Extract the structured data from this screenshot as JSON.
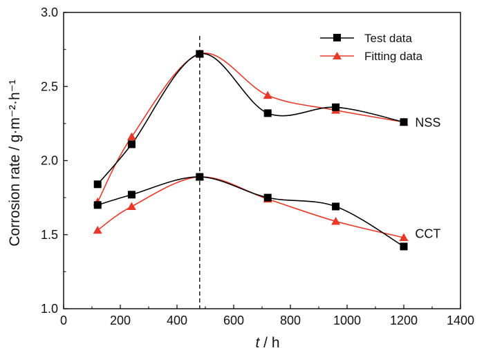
{
  "chart_data": {
    "type": "line",
    "title": "",
    "xlabel_italic": "t",
    "xlabel_rest": " / h",
    "ylabel": "Corrosion rate / g·m⁻²·h⁻¹",
    "xlim": [
      0,
      1400
    ],
    "ylim": [
      1.0,
      3.0
    ],
    "xticks": [
      0,
      200,
      400,
      600,
      800,
      1000,
      1200,
      1400
    ],
    "yticks": [
      1.0,
      1.5,
      2.0,
      2.5,
      3.0
    ],
    "xtick_labels": [
      "0",
      "200",
      "400",
      "600",
      "800",
      "1000",
      "1200",
      "1400"
    ],
    "ytick_labels": [
      "1.0",
      "1.5",
      "2.0",
      "2.5",
      "3.0"
    ],
    "vline_x": 480,
    "legend_position": "top-right",
    "colors": {
      "test": "#000000",
      "fitting": "#e8382a"
    },
    "series": [
      {
        "name": "Test data",
        "group": "NSS",
        "kind": "test",
        "x": [
          120,
          240,
          480,
          720,
          960,
          1200
        ],
        "y": [
          1.84,
          2.11,
          2.72,
          2.32,
          2.36,
          2.26
        ]
      },
      {
        "name": "Fitting data",
        "group": "NSS",
        "kind": "fitting",
        "x": [
          120,
          240,
          480,
          720,
          960,
          1200
        ],
        "y": [
          1.72,
          2.16,
          2.72,
          2.44,
          2.34,
          2.26
        ]
      },
      {
        "name": "Test data",
        "group": "CCT",
        "kind": "test",
        "x": [
          120,
          240,
          480,
          720,
          960,
          1200
        ],
        "y": [
          1.7,
          1.77,
          1.89,
          1.75,
          1.69,
          1.42
        ]
      },
      {
        "name": "Fitting data",
        "group": "CCT",
        "kind": "fitting",
        "x": [
          120,
          240,
          480,
          720,
          960,
          1200
        ],
        "y": [
          1.53,
          1.69,
          1.89,
          1.74,
          1.59,
          1.48
        ]
      }
    ],
    "annotations": [
      {
        "text": "NSS",
        "x": 1240,
        "y": 2.26
      },
      {
        "text": "CCT",
        "x": 1240,
        "y": 1.51
      }
    ],
    "legend": [
      {
        "label": "Test data",
        "kind": "test"
      },
      {
        "label": "Fitting data",
        "kind": "fitting"
      }
    ]
  }
}
